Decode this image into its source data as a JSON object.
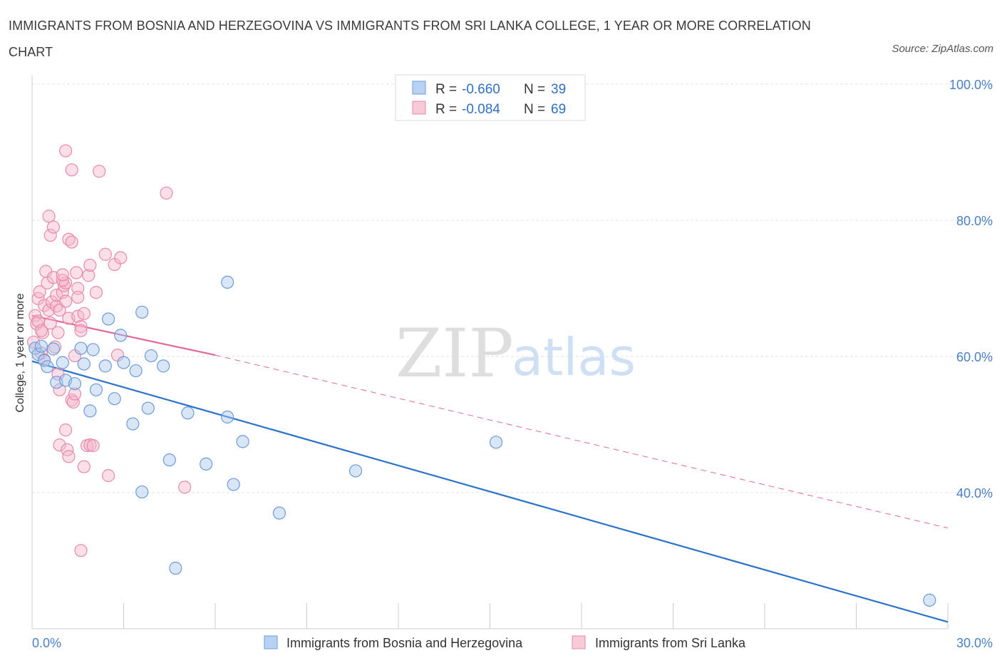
{
  "header": {
    "title": "IMMIGRANTS FROM BOSNIA AND HERZEGOVINA VS IMMIGRANTS FROM SRI LANKA COLLEGE, 1 YEAR OR MORE CORRELATION CHART",
    "source": "Source: ZipAtlas.com"
  },
  "watermark": {
    "zip": "ZIP",
    "atlas": "atlas"
  },
  "legend": [
    {
      "r_label": "R =",
      "r_value": "-0.660",
      "n_label": "N =",
      "n_value": "39"
    },
    {
      "r_label": "R =",
      "r_value": "-0.084",
      "n_label": "N =",
      "n_value": "69"
    }
  ],
  "colors": {
    "blue_fill": "#a9c7ef",
    "blue_stroke": "#6c9bd8",
    "blue_line": "#2b72c9",
    "pink_fill": "#f5b8cb",
    "pink_stroke": "#e98aa8",
    "pink_line": "#e2689a",
    "tick_text": "#4a7fc8",
    "grid": "#e0e0e0"
  },
  "chart_data": {
    "type": "scatter",
    "title": "IMMIGRANTS FROM BOSNIA AND HERZEGOVINA VS IMMIGRANTS FROM SRI LANKA COLLEGE, 1 YEAR OR MORE CORRELATION CHART",
    "xlabel": "",
    "ylabel": "College, 1 year or more",
    "xlim": [
      0,
      30
    ],
    "ylim": [
      20,
      100
    ],
    "x_tick_labels": [
      "0.0%",
      "30.0%"
    ],
    "y_ticks": [
      40,
      60,
      80,
      100
    ],
    "y_tick_labels": [
      "40.0%",
      "60.0%",
      "80.0%",
      "100.0%"
    ],
    "grid": true,
    "legend_position": "top-center",
    "series": [
      {
        "name": "Immigrants from Bosnia and Herzegovina",
        "color": "#6c9bd8",
        "points": [
          [
            0.1,
            61.2
          ],
          [
            0.2,
            60.3
          ],
          [
            0.3,
            61.5
          ],
          [
            0.4,
            59.4
          ],
          [
            0.5,
            58.5
          ],
          [
            0.7,
            61.1
          ],
          [
            0.8,
            56.2
          ],
          [
            1.0,
            59.1
          ],
          [
            1.1,
            56.5
          ],
          [
            1.4,
            56.0
          ],
          [
            1.6,
            61.2
          ],
          [
            1.7,
            58.9
          ],
          [
            1.9,
            52.0
          ],
          [
            2.0,
            61.0
          ],
          [
            2.1,
            55.1
          ],
          [
            2.4,
            58.6
          ],
          [
            2.5,
            65.5
          ],
          [
            2.7,
            53.8
          ],
          [
            2.9,
            63.1
          ],
          [
            3.0,
            59.1
          ],
          [
            3.3,
            50.1
          ],
          [
            3.4,
            57.9
          ],
          [
            3.6,
            40.1
          ],
          [
            3.6,
            66.5
          ],
          [
            3.8,
            52.4
          ],
          [
            3.9,
            60.1
          ],
          [
            4.3,
            58.6
          ],
          [
            4.5,
            44.8
          ],
          [
            4.7,
            28.9
          ],
          [
            5.1,
            51.7
          ],
          [
            5.7,
            44.2
          ],
          [
            6.4,
            51.1
          ],
          [
            6.4,
            70.9
          ],
          [
            6.6,
            41.2
          ],
          [
            6.9,
            47.5
          ],
          [
            8.1,
            37.0
          ],
          [
            10.6,
            43.2
          ],
          [
            15.2,
            47.4
          ],
          [
            29.4,
            24.2
          ]
        ]
      },
      {
        "name": "Immigrants from Sri Lanka",
        "color": "#e98aa8",
        "points": [
          [
            0.05,
            62.1
          ],
          [
            0.1,
            66.0
          ],
          [
            0.15,
            64.8
          ],
          [
            0.2,
            68.5
          ],
          [
            0.25,
            69.5
          ],
          [
            0.3,
            60.5
          ],
          [
            0.35,
            63.5
          ],
          [
            0.4,
            67.5
          ],
          [
            0.45,
            72.5
          ],
          [
            0.5,
            70.8
          ],
          [
            0.55,
            66.8
          ],
          [
            0.6,
            64.9
          ],
          [
            0.65,
            68.0
          ],
          [
            0.7,
            71.6
          ],
          [
            0.75,
            61.4
          ],
          [
            0.8,
            67.4
          ],
          [
            0.85,
            63.5
          ],
          [
            0.9,
            66.8
          ],
          [
            0.55,
            80.6
          ],
          [
            0.6,
            77.8
          ],
          [
            0.7,
            79.0
          ],
          [
            0.8,
            69.0
          ],
          [
            0.85,
            57.4
          ],
          [
            0.9,
            55.1
          ],
          [
            0.9,
            47.0
          ],
          [
            1.0,
            69.4
          ],
          [
            1.05,
            70.4
          ],
          [
            1.1,
            70.8
          ],
          [
            1.1,
            68.1
          ],
          [
            1.2,
            65.6
          ],
          [
            1.0,
            71.2
          ],
          [
            1.0,
            72.0
          ],
          [
            1.1,
            49.2
          ],
          [
            1.15,
            46.3
          ],
          [
            1.2,
            45.3
          ],
          [
            1.1,
            90.2
          ],
          [
            1.2,
            77.2
          ],
          [
            1.3,
            76.8
          ],
          [
            1.3,
            87.4
          ],
          [
            1.3,
            53.6
          ],
          [
            1.35,
            53.3
          ],
          [
            1.4,
            54.5
          ],
          [
            1.4,
            60.1
          ],
          [
            1.45,
            72.3
          ],
          [
            1.5,
            70.0
          ],
          [
            1.5,
            68.7
          ],
          [
            1.5,
            65.9
          ],
          [
            1.6,
            64.4
          ],
          [
            1.6,
            31.5
          ],
          [
            1.6,
            63.8
          ],
          [
            1.7,
            66.3
          ],
          [
            1.7,
            43.8
          ],
          [
            1.8,
            46.9
          ],
          [
            1.85,
            71.9
          ],
          [
            1.9,
            73.4
          ],
          [
            1.9,
            47.0
          ],
          [
            2.0,
            46.9
          ],
          [
            2.1,
            69.4
          ],
          [
            2.2,
            87.2
          ],
          [
            2.4,
            75.0
          ],
          [
            2.5,
            42.5
          ],
          [
            2.7,
            73.5
          ],
          [
            2.8,
            60.2
          ],
          [
            2.9,
            74.5
          ],
          [
            4.4,
            84.0
          ],
          [
            5.0,
            40.8
          ],
          [
            0.2,
            65.2
          ],
          [
            0.3,
            63.8
          ],
          [
            0.4,
            59.5
          ]
        ]
      }
    ],
    "trend_lines": [
      {
        "series": "Immigrants from Bosnia and Herzegovina",
        "from": [
          0,
          59.3
        ],
        "to": [
          30,
          21.0
        ],
        "style": "solid"
      },
      {
        "series": "Immigrants from Sri Lanka",
        "from": [
          0,
          66.0
        ],
        "to": [
          6.0,
          60.2
        ],
        "style": "solid"
      },
      {
        "series": "Immigrants from Sri Lanka",
        "from": [
          6.0,
          60.2
        ],
        "to": [
          30,
          34.8
        ],
        "style": "dashed"
      }
    ]
  }
}
